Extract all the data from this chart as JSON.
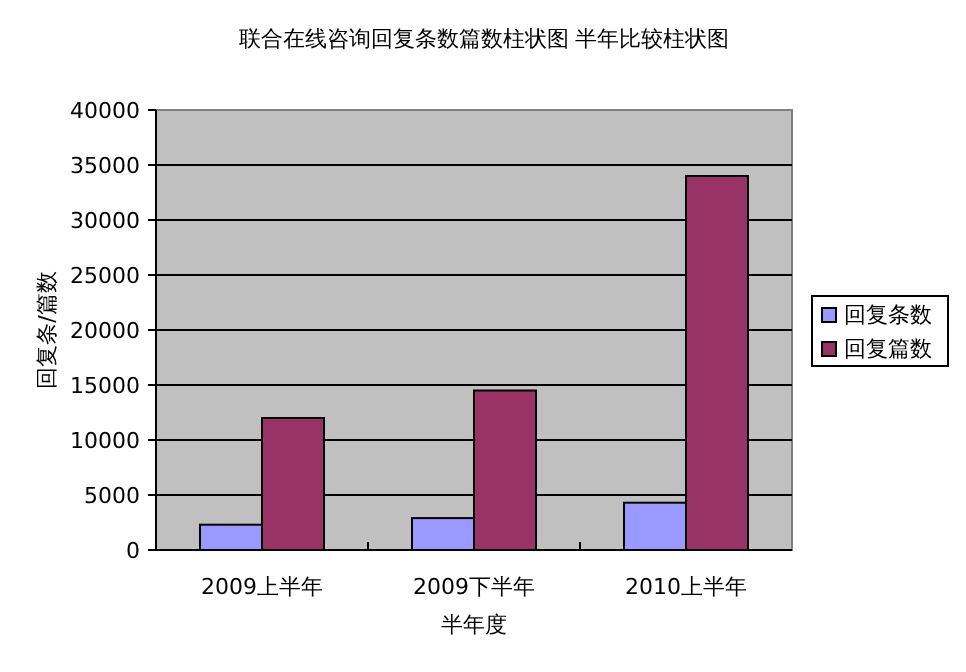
{
  "chart_data": {
    "type": "bar",
    "title": "联合在线咨询回复条数篇数柱状图 半年比较柱状图",
    "xlabel": "半年度",
    "ylabel": "回复条/篇数",
    "categories": [
      "2009上半年",
      "2009下半年",
      "2010上半年"
    ],
    "series": [
      {
        "name": "回复条数",
        "color": "#9999ff",
        "values": [
          2300,
          2900,
          4300
        ]
      },
      {
        "name": "回复篇数",
        "color": "#993366",
        "values": [
          12000,
          14500,
          34000
        ]
      }
    ],
    "ylim": [
      0,
      40000
    ],
    "yticks": [
      0,
      5000,
      10000,
      15000,
      20000,
      25000,
      30000,
      35000,
      40000
    ],
    "grid": "y",
    "legend": "right"
  }
}
